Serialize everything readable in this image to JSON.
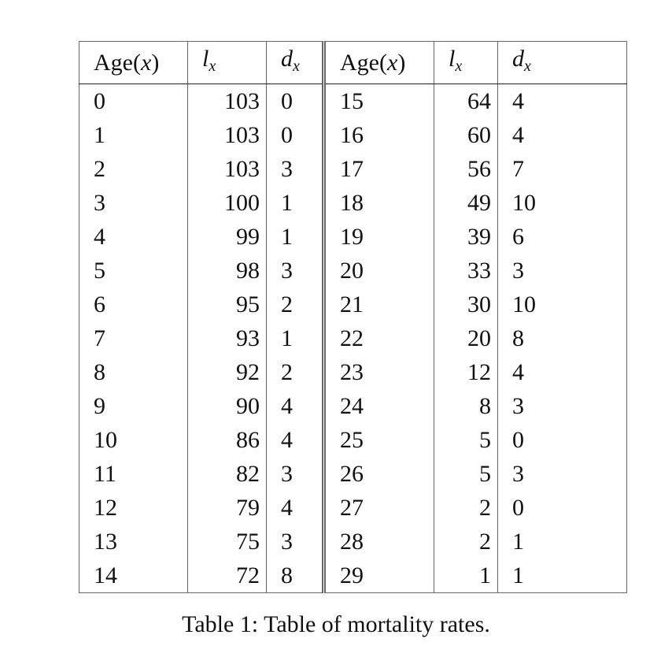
{
  "table": {
    "headers": {
      "age": {
        "pre": "Age(",
        "var": "x",
        "post": ")"
      },
      "l": {
        "var": "l",
        "sub": "x"
      },
      "d": {
        "var": "d",
        "sub": "x"
      }
    },
    "rows": [
      {
        "age1": "0",
        "l1": "103",
        "d1": "0",
        "age2": "15",
        "l2": "64",
        "d2": "4"
      },
      {
        "age1": "1",
        "l1": "103",
        "d1": "0",
        "age2": "16",
        "l2": "60",
        "d2": "4"
      },
      {
        "age1": "2",
        "l1": "103",
        "d1": "3",
        "age2": "17",
        "l2": "56",
        "d2": "7"
      },
      {
        "age1": "3",
        "l1": "100",
        "d1": "1",
        "age2": "18",
        "l2": "49",
        "d2": "10"
      },
      {
        "age1": "4",
        "l1": "99",
        "d1": "1",
        "age2": "19",
        "l2": "39",
        "d2": "6"
      },
      {
        "age1": "5",
        "l1": "98",
        "d1": "3",
        "age2": "20",
        "l2": "33",
        "d2": "3"
      },
      {
        "age1": "6",
        "l1": "95",
        "d1": "2",
        "age2": "21",
        "l2": "30",
        "d2": "10"
      },
      {
        "age1": "7",
        "l1": "93",
        "d1": "1",
        "age2": "22",
        "l2": "20",
        "d2": "8"
      },
      {
        "age1": "8",
        "l1": "92",
        "d1": "2",
        "age2": "23",
        "l2": "12",
        "d2": "4"
      },
      {
        "age1": "9",
        "l1": "90",
        "d1": "4",
        "age2": "24",
        "l2": "8",
        "d2": "3"
      },
      {
        "age1": "10",
        "l1": "86",
        "d1": "4",
        "age2": "25",
        "l2": "5",
        "d2": "0"
      },
      {
        "age1": "11",
        "l1": "82",
        "d1": "3",
        "age2": "26",
        "l2": "5",
        "d2": "3"
      },
      {
        "age1": "12",
        "l1": "79",
        "d1": "4",
        "age2": "27",
        "l2": "2",
        "d2": "0"
      },
      {
        "age1": "13",
        "l1": "75",
        "d1": "3",
        "age2": "28",
        "l2": "2",
        "d2": "1"
      },
      {
        "age1": "14",
        "l1": "72",
        "d1": "8",
        "age2": "29",
        "l2": "1",
        "d2": "1"
      }
    ]
  },
  "caption": "Table 1: Table of mortality rates."
}
